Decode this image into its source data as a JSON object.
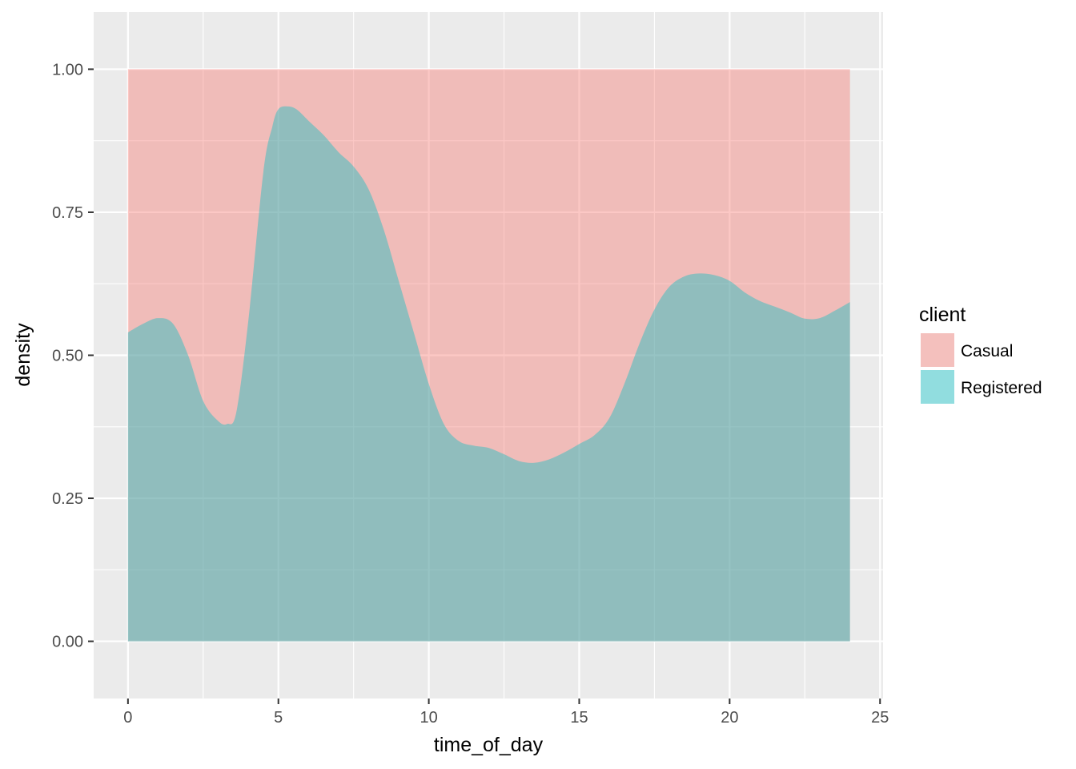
{
  "chart_data": {
    "type": "area",
    "subtype": "stacked-conditional-density",
    "title": "",
    "xlabel": "time_of_day",
    "ylabel": "density",
    "xlim": [
      -1.14,
      25.1
    ],
    "ylim": [
      -0.1,
      1.1
    ],
    "x_ticks": [
      0,
      5,
      10,
      15,
      20,
      25
    ],
    "x_tick_labels": [
      "0",
      "5",
      "10",
      "15",
      "20",
      "25"
    ],
    "y_ticks": [
      0,
      0.25,
      0.5,
      0.75,
      1.0
    ],
    "y_tick_labels": [
      "0.00",
      "0.25",
      "0.50",
      "0.75",
      "1.00"
    ],
    "grid": true,
    "legend": {
      "title": "client",
      "position": "right",
      "items": [
        {
          "label": "Casual",
          "color": "#F8766D"
        },
        {
          "label": "Registered",
          "color": "#00BFC4"
        }
      ]
    },
    "series": [
      {
        "name": "Casual",
        "color": "#F8766D",
        "x": [
          0,
          24
        ],
        "values": [
          1.0,
          1.0
        ]
      },
      {
        "name": "Registered",
        "color": "#00BFC4",
        "x": [
          0,
          0.5,
          1.0,
          1.5,
          2.0,
          2.5,
          3.0,
          3.3,
          3.6,
          4.0,
          4.5,
          4.8,
          5.0,
          5.3,
          5.6,
          6.0,
          6.5,
          7.0,
          7.5,
          8.0,
          8.5,
          9.0,
          9.5,
          10.0,
          10.5,
          11.0,
          11.5,
          12.0,
          12.5,
          13.0,
          13.5,
          14.0,
          14.5,
          15.0,
          15.5,
          16.0,
          16.5,
          17.0,
          17.5,
          18.0,
          18.5,
          19.0,
          19.5,
          20.0,
          20.5,
          21.0,
          21.5,
          22.0,
          22.5,
          23.0,
          23.5,
          24.0
        ],
        "values": [
          0.54,
          0.555,
          0.565,
          0.555,
          0.5,
          0.42,
          0.385,
          0.38,
          0.4,
          0.56,
          0.82,
          0.9,
          0.93,
          0.935,
          0.93,
          0.91,
          0.885,
          0.855,
          0.83,
          0.79,
          0.72,
          0.63,
          0.54,
          0.45,
          0.38,
          0.35,
          0.342,
          0.338,
          0.327,
          0.315,
          0.312,
          0.318,
          0.33,
          0.345,
          0.36,
          0.39,
          0.45,
          0.52,
          0.58,
          0.62,
          0.638,
          0.643,
          0.64,
          0.63,
          0.61,
          0.595,
          0.585,
          0.575,
          0.564,
          0.565,
          0.578,
          0.593
        ]
      }
    ]
  }
}
